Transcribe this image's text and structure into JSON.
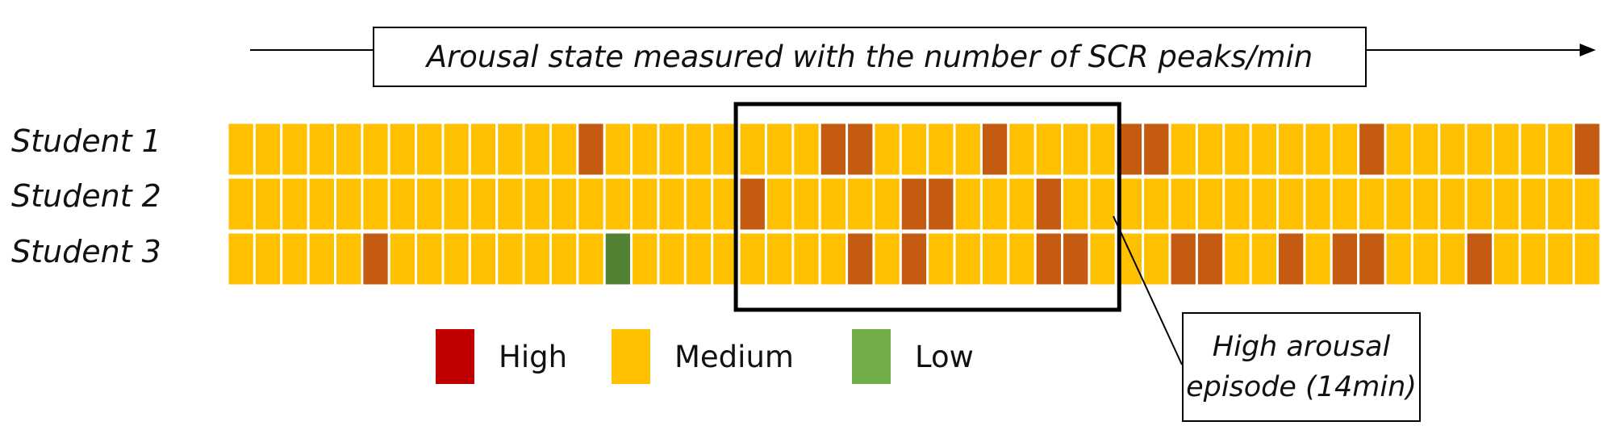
{
  "title": "Arousal state measured with the number of SCR peaks/min",
  "colors": {
    "high": "#C00000",
    "high_cell": "#C55A11",
    "medium": "#FFC000",
    "low": "#70AD47",
    "low_cell": "#548235"
  },
  "rows": [
    {
      "label": "Student 1",
      "high_minutes": [
        13,
        22,
        23,
        28,
        33,
        34,
        42,
        50
      ],
      "low_minutes": []
    },
    {
      "label": "Student 2",
      "high_minutes": [
        19,
        25,
        26,
        30
      ],
      "low_minutes": []
    },
    {
      "label": "Student 3",
      "high_minutes": [
        5,
        23,
        25,
        30,
        31,
        35,
        36,
        39,
        41,
        42,
        46
      ],
      "low_minutes": [
        14
      ]
    }
  ],
  "minutes_total": 51,
  "episode": {
    "start_minute": 19,
    "end_minute": 32,
    "label_line1": "High arousal",
    "label_line2": "episode (14min)"
  },
  "legend": [
    {
      "label": "High",
      "color": "#C00000"
    },
    {
      "label": "Medium",
      "color": "#FFC000"
    },
    {
      "label": "Low",
      "color": "#70AD47"
    }
  ]
}
